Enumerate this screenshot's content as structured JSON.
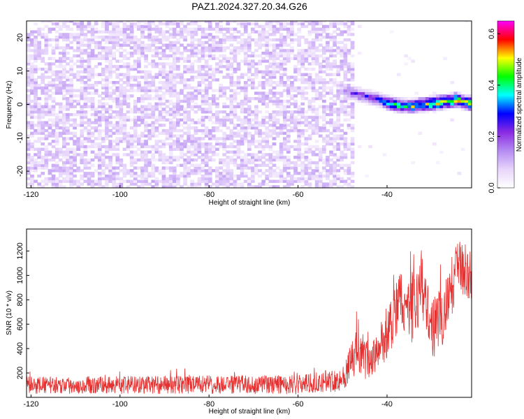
{
  "title": "PAZ1.2024.327.20.34.G26",
  "chart_data": [
    {
      "type": "heatmap",
      "xlabel": "Height of straight line (km)",
      "ylabel": "Frequency (Hz)",
      "xlim": [
        -121,
        -21
      ],
      "ylim": [
        -25,
        25
      ],
      "x_ticks": [
        -120,
        -100,
        -80,
        -60,
        -40
      ],
      "y_ticks": [
        -20,
        -10,
        0,
        10,
        20
      ],
      "colorbar": {
        "label": "Normalized spectral amplitude",
        "range": [
          0.0,
          0.65
        ],
        "ticks": [
          0.0,
          0.2,
          0.4,
          0.6
        ],
        "colors": [
          "#ffffff",
          "#e7d5fb",
          "#b58cf2",
          "#8a2be2",
          "#0000ff",
          "#00ffff",
          "#00ff00",
          "#ffff00",
          "#ff0000",
          "#ff00ff"
        ]
      },
      "signal_track": [
        {
          "x": -50,
          "freq": 4.0,
          "amplitude": 0.2
        },
        {
          "x": -48,
          "freq": 3.0,
          "amplitude": 0.25
        },
        {
          "x": -45,
          "freq": 2.0,
          "amplitude": 0.28
        },
        {
          "x": -42,
          "freq": 1.0,
          "amplitude": 0.32
        },
        {
          "x": -40,
          "freq": 0.0,
          "amplitude": 0.45
        },
        {
          "x": -38,
          "freq": -0.5,
          "amplitude": 0.5
        },
        {
          "x": -35,
          "freq": -1.0,
          "amplitude": 0.48
        },
        {
          "x": -33,
          "freq": -0.5,
          "amplitude": 0.55
        },
        {
          "x": -30,
          "freq": 0.0,
          "amplitude": 0.58
        },
        {
          "x": -27,
          "freq": 0.5,
          "amplitude": 0.55
        },
        {
          "x": -25,
          "freq": 1.0,
          "amplitude": 0.6
        },
        {
          "x": -22,
          "freq": 0.0,
          "amplitude": 0.62
        }
      ],
      "noise_region": {
        "x": [
          -121,
          -48
        ],
        "amplitude_range": [
          0.03,
          0.12
        ]
      }
    },
    {
      "type": "line",
      "xlabel": "Height of straight line (km)",
      "ylabel": "SNR (10 * v/v)",
      "xlim": [
        -121,
        -21
      ],
      "ylim": [
        0,
        1380
      ],
      "x_ticks": [
        -120,
        -100,
        -80,
        -60,
        -40
      ],
      "y_ticks": [
        200,
        400,
        600,
        800,
        1000,
        1200
      ],
      "color": "#e53030",
      "envelope": [
        {
          "x": -121,
          "mean": 100,
          "spread": 70
        },
        {
          "x": -60,
          "mean": 105,
          "spread": 80
        },
        {
          "x": -50,
          "mean": 150,
          "spread": 100
        },
        {
          "x": -47,
          "mean": 350,
          "spread": 200
        },
        {
          "x": -44,
          "mean": 300,
          "spread": 150
        },
        {
          "x": -42,
          "mean": 380,
          "spread": 150
        },
        {
          "x": -40,
          "mean": 500,
          "spread": 200
        },
        {
          "x": -37,
          "mean": 800,
          "spread": 250
        },
        {
          "x": -35,
          "mean": 700,
          "spread": 300
        },
        {
          "x": -32,
          "mean": 900,
          "spread": 250
        },
        {
          "x": -30,
          "mean": 550,
          "spread": 250
        },
        {
          "x": -27,
          "mean": 700,
          "spread": 250
        },
        {
          "x": -24,
          "mean": 1100,
          "spread": 250
        },
        {
          "x": -21,
          "mean": 1000,
          "spread": 200
        }
      ]
    }
  ]
}
